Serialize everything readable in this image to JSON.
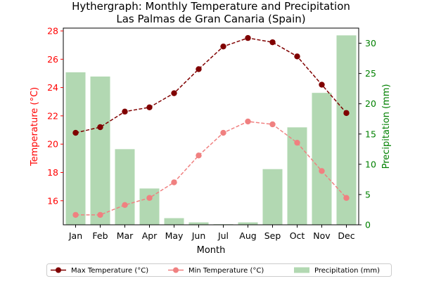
{
  "chart_data": {
    "type": "bar+line",
    "title": "Hythergraph: Monthly Temperature and Precipitation",
    "subtitle": "Las Palmas de Gran Canaria (Spain)",
    "xlabel": "Month",
    "ylabel_left": "Temperature (°C)",
    "ylabel_right": "Precipitation (mm)",
    "categories": [
      "Jan",
      "Feb",
      "Mar",
      "Apr",
      "May",
      "Jun",
      "Jul",
      "Aug",
      "Sep",
      "Oct",
      "Nov",
      "Dec"
    ],
    "ylim_left": [
      14.3,
      28.2
    ],
    "yticks_left": [
      16,
      18,
      20,
      22,
      24,
      26,
      28
    ],
    "ylim_right": [
      0,
      32.5
    ],
    "yticks_right": [
      0,
      5,
      10,
      15,
      20,
      25,
      30
    ],
    "series": [
      {
        "name": "Max Temperature (°C)",
        "kind": "line",
        "axis": "left",
        "color": "#800000",
        "style": "dashed",
        "values": [
          20.8,
          21.2,
          22.3,
          22.6,
          23.6,
          25.3,
          26.9,
          27.5,
          27.2,
          26.2,
          24.2,
          22.2
        ]
      },
      {
        "name": "Min Temperature (°C)",
        "kind": "line",
        "axis": "left",
        "color": "#f08080",
        "style": "dashed",
        "values": [
          15.0,
          15.0,
          15.7,
          16.2,
          17.3,
          19.2,
          20.8,
          21.6,
          21.4,
          20.1,
          18.1,
          16.2
        ]
      },
      {
        "name": "Precipitation (mm)",
        "kind": "bar",
        "axis": "right",
        "color": "#b2d8b2",
        "values": [
          25.2,
          24.5,
          12.5,
          6.0,
          1.1,
          0.4,
          0.1,
          0.4,
          9.2,
          16.1,
          21.8,
          31.3
        ]
      }
    ],
    "left_axis_color": "#ff0000",
    "right_axis_color": "#008000",
    "grid": false,
    "legend_position": "bottom"
  }
}
